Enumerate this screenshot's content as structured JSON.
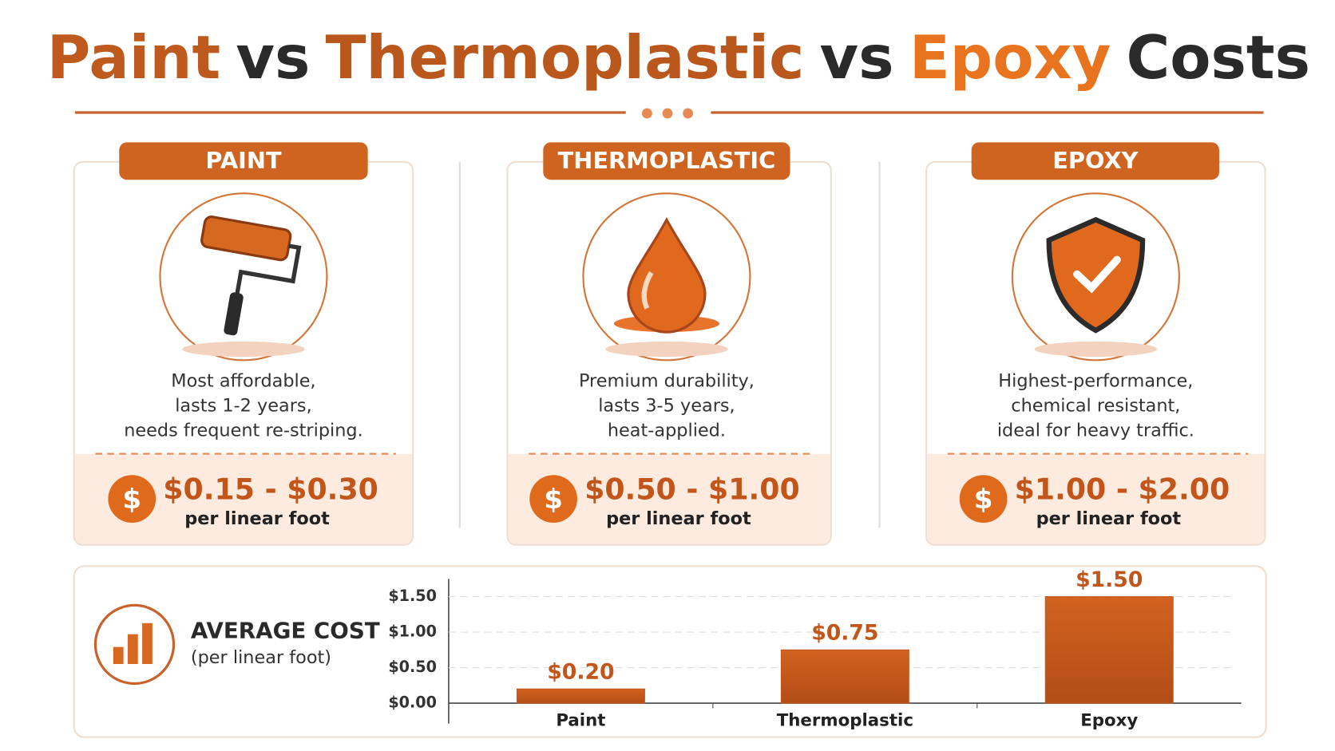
{
  "header": {
    "title_parts": [
      {
        "text": "Paint",
        "color": "#bf5a1f"
      },
      {
        "text": "vs",
        "color": "#2a2a2a"
      },
      {
        "text": "Thermoplastic",
        "color": "#b9571d"
      },
      {
        "text": "vs",
        "color": "#2a2a2a"
      },
      {
        "text": "Epoxy",
        "color": "#e9741f"
      },
      {
        "text": "Costs",
        "color": "#2a2a2a"
      }
    ]
  },
  "cards": [
    {
      "label": "PAINT",
      "description": [
        "Most affordable,",
        "lasts 1-2 years,",
        "needs frequent re-striping."
      ],
      "icon_symbol": "$",
      "price": "$0.15 - $0.30",
      "unit": "per linear foot"
    },
    {
      "label": "THERMOPLASTIC",
      "description": [
        "Premium durability,",
        "lasts 3-5 years,",
        "heat-applied."
      ],
      "icon_symbol": "$",
      "price": "$0.50 - $1.00",
      "unit": "per linear foot"
    },
    {
      "label": "EPOXY",
      "description": [
        "Highest-performance,",
        "chemical resistant,",
        "ideal for heavy traffic."
      ],
      "icon_symbol": "$",
      "price": "$1.00 - $2.00",
      "unit": "per linear foot"
    }
  ],
  "chart_data": {
    "type": "bar",
    "title": "AVERAGE COST",
    "subtitle": "(per linear foot)",
    "categories": [
      "Paint",
      "Thermoplastic",
      "Epoxy"
    ],
    "values": [
      0.2,
      0.75,
      1.5
    ],
    "value_labels": [
      "$0.20",
      "$0.75",
      "$1.50"
    ],
    "color": "#c4581c",
    "ylim": [
      0,
      1.75
    ],
    "yticks": [
      {
        "value": 0,
        "label": "$0.00"
      },
      {
        "value": 0.5,
        "label": "$0.50"
      },
      {
        "value": 1,
        "label": "$1.00"
      },
      {
        "value": 1.5,
        "label": "$1.50"
      }
    ],
    "grid": true
  }
}
